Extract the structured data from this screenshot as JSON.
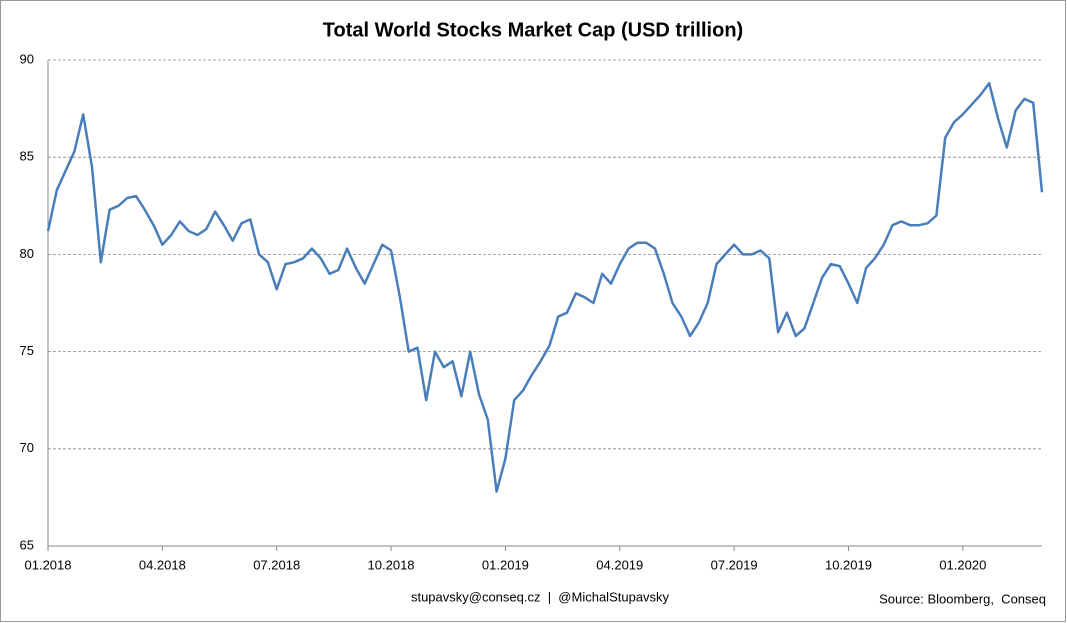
{
  "chart_data": {
    "type": "line",
    "title": "Total World Stocks Market Cap (USD trillion)",
    "categories": [
      "01.2018",
      null,
      null,
      null,
      null,
      null,
      null,
      null,
      null,
      null,
      null,
      null,
      null,
      "04.2018",
      null,
      null,
      null,
      null,
      null,
      null,
      null,
      null,
      null,
      null,
      null,
      null,
      "07.2018",
      null,
      null,
      null,
      null,
      null,
      null,
      null,
      null,
      null,
      null,
      null,
      null,
      "10.2018",
      null,
      null,
      null,
      null,
      null,
      null,
      null,
      null,
      null,
      null,
      null,
      null,
      "01.2019",
      null,
      null,
      null,
      null,
      null,
      null,
      null,
      null,
      null,
      null,
      null,
      null,
      "04.2019",
      null,
      null,
      null,
      null,
      null,
      null,
      null,
      null,
      null,
      null,
      null,
      null,
      "07.2019",
      null,
      null,
      null,
      null,
      null,
      null,
      null,
      null,
      null,
      null,
      null,
      null,
      "10.2019",
      null,
      null,
      null,
      null,
      null,
      null,
      null,
      null,
      null,
      null,
      null,
      null,
      "01.2020",
      null,
      null,
      null,
      null,
      null,
      null,
      null,
      null,
      null
    ],
    "values": [
      81.2,
      83.3,
      84.3,
      85.3,
      87.2,
      84.5,
      79.6,
      82.3,
      82.5,
      82.9,
      83.0,
      82.3,
      81.5,
      80.5,
      81.0,
      81.7,
      81.2,
      81.0,
      81.3,
      82.2,
      81.5,
      80.7,
      81.6,
      81.8,
      80.0,
      79.6,
      78.2,
      79.5,
      79.6,
      79.8,
      80.3,
      79.8,
      79.0,
      79.2,
      80.3,
      79.3,
      78.5,
      79.5,
      80.5,
      80.2,
      77.8,
      75.0,
      75.2,
      72.5,
      75.0,
      74.2,
      74.5,
      72.7,
      75.0,
      72.8,
      71.5,
      67.8,
      69.5,
      72.5,
      73.0,
      73.8,
      74.5,
      75.3,
      76.8,
      77.0,
      78.0,
      77.8,
      77.5,
      79.0,
      78.5,
      79.5,
      80.3,
      80.6,
      80.6,
      80.3,
      79.0,
      77.5,
      76.8,
      75.8,
      76.5,
      77.5,
      79.5,
      80.0,
      80.5,
      80.0,
      80.0,
      80.2,
      79.8,
      76.0,
      77.0,
      75.8,
      76.2,
      77.5,
      78.8,
      79.5,
      79.4,
      78.5,
      77.5,
      79.3,
      79.8,
      80.5,
      81.5,
      81.7,
      81.5,
      81.5,
      81.6,
      82.0,
      86.0,
      86.8,
      87.2,
      87.7,
      88.2,
      88.8,
      87.0,
      85.5,
      87.4,
      88.0,
      87.8,
      83.2
    ],
    "color": "#4a7ebb",
    "ylim": [
      65,
      90
    ],
    "yticks": [
      65,
      70,
      75,
      80,
      85,
      90
    ],
    "grid": true,
    "credit": "stupavsky@conseq.cz  |  @MichalStupavsky",
    "source": "Source: Bloomberg,  Conseq"
  }
}
